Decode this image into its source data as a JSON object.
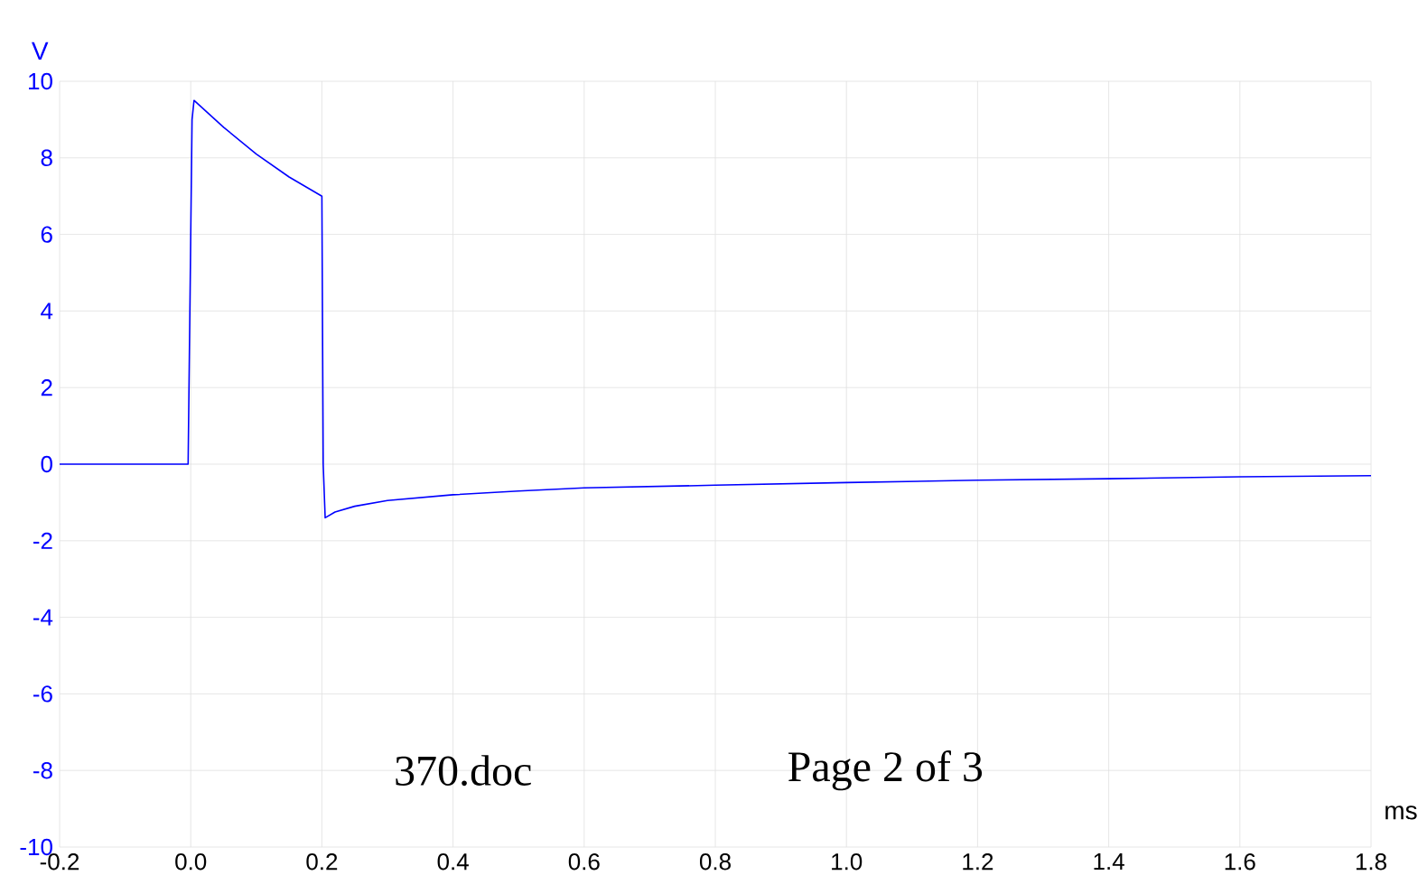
{
  "chart_data": {
    "type": "line",
    "xlabel": "ms",
    "ylabel": "V",
    "x": [
      -0.2,
      -0.1,
      -0.004,
      0.002,
      0.005,
      0.05,
      0.1,
      0.15,
      0.2,
      0.202,
      0.205,
      0.22,
      0.25,
      0.3,
      0.4,
      0.5,
      0.6,
      0.8,
      1.0,
      1.2,
      1.4,
      1.6,
      1.8
    ],
    "series": [
      {
        "color": "#0000ff",
        "values": [
          0,
          0,
          0,
          9.0,
          9.5,
          8.8,
          8.1,
          7.5,
          7.0,
          0,
          -1.4,
          -1.25,
          -1.1,
          -0.95,
          -0.8,
          -0.7,
          -0.62,
          -0.55,
          -0.48,
          -0.42,
          -0.38,
          -0.33,
          -0.3
        ]
      }
    ],
    "xlim": [
      -0.2,
      1.8
    ],
    "ylim": [
      -10,
      10
    ],
    "xticks": [
      {
        "value": -0.2,
        "label": "-0.2"
      },
      {
        "value": 0,
        "label": "0.0"
      },
      {
        "value": 0.2,
        "label": "0.2"
      },
      {
        "value": 0.4,
        "label": "0.4"
      },
      {
        "value": 0.6,
        "label": "0.6"
      },
      {
        "value": 0.8,
        "label": "0.8"
      },
      {
        "value": 1.0,
        "label": "1.0"
      },
      {
        "value": 1.2,
        "label": "1.2"
      },
      {
        "value": 1.4,
        "label": "1.4"
      },
      {
        "value": 1.6,
        "label": "1.6"
      },
      {
        "value": 1.8,
        "label": "1.8"
      }
    ],
    "yticks": [
      -10,
      -8,
      -6,
      -4,
      -2,
      0,
      2,
      4,
      6,
      8,
      10
    ],
    "grid": true,
    "marker": "none",
    "line_style": "solid",
    "annotations": [
      "370.doc",
      "Page 2 of 3"
    ]
  }
}
